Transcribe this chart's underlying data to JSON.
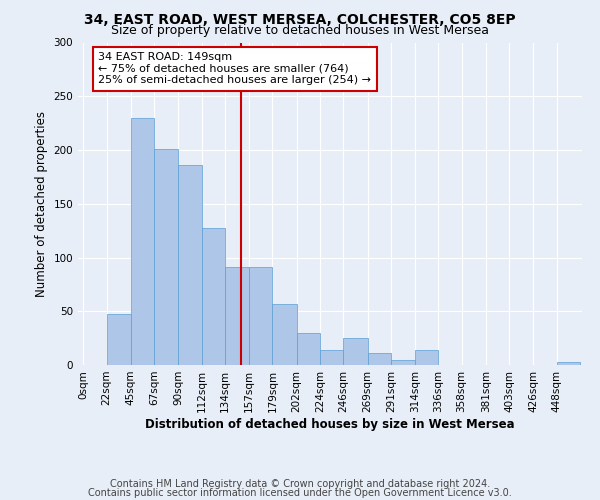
{
  "title1": "34, EAST ROAD, WEST MERSEA, COLCHESTER, CO5 8EP",
  "title2": "Size of property relative to detached houses in West Mersea",
  "xlabel": "Distribution of detached houses by size in West Mersea",
  "ylabel": "Number of detached properties",
  "footnote1": "Contains HM Land Registry data © Crown copyright and database right 2024.",
  "footnote2": "Contains public sector information licensed under the Open Government Licence v3.0.",
  "annotation_line1": "34 EAST ROAD: 149sqm",
  "annotation_line2": "← 75% of detached houses are smaller (764)",
  "annotation_line3": "25% of semi-detached houses are larger (254) →",
  "bar_labels": [
    "0sqm",
    "22sqm",
    "45sqm",
    "67sqm",
    "90sqm",
    "112sqm",
    "134sqm",
    "157sqm",
    "179sqm",
    "202sqm",
    "224sqm",
    "246sqm",
    "269sqm",
    "291sqm",
    "314sqm",
    "336sqm",
    "358sqm",
    "381sqm",
    "403sqm",
    "426sqm",
    "448sqm"
  ],
  "bar_values": [
    0,
    47,
    230,
    201,
    186,
    127,
    91,
    91,
    57,
    30,
    14,
    25,
    11,
    5,
    14,
    0,
    0,
    0,
    0,
    0,
    3
  ],
  "x_edges": [
    0,
    22,
    45,
    67,
    90,
    112,
    134,
    157,
    179,
    202,
    224,
    246,
    269,
    291,
    314,
    336,
    358,
    381,
    403,
    426,
    448
  ],
  "bar_color": "#aec6e8",
  "bar_edge_color": "#5a9fd4",
  "vline_x": 149,
  "vline_color": "#cc0000",
  "annotation_box_color": "#cc0000",
  "ylim": [
    0,
    300
  ],
  "yticks": [
    0,
    50,
    100,
    150,
    200,
    250,
    300
  ],
  "title_fontsize": 10,
  "subtitle_fontsize": 9,
  "axis_label_fontsize": 8.5,
  "ylabel_fontsize": 8.5,
  "tick_fontsize": 7.5,
  "annotation_fontsize": 8,
  "footnote_fontsize": 7,
  "background_color": "#e8eef7",
  "plot_bg_color": "#e8eef7",
  "xlim_left": -5,
  "xlim_right": 472
}
